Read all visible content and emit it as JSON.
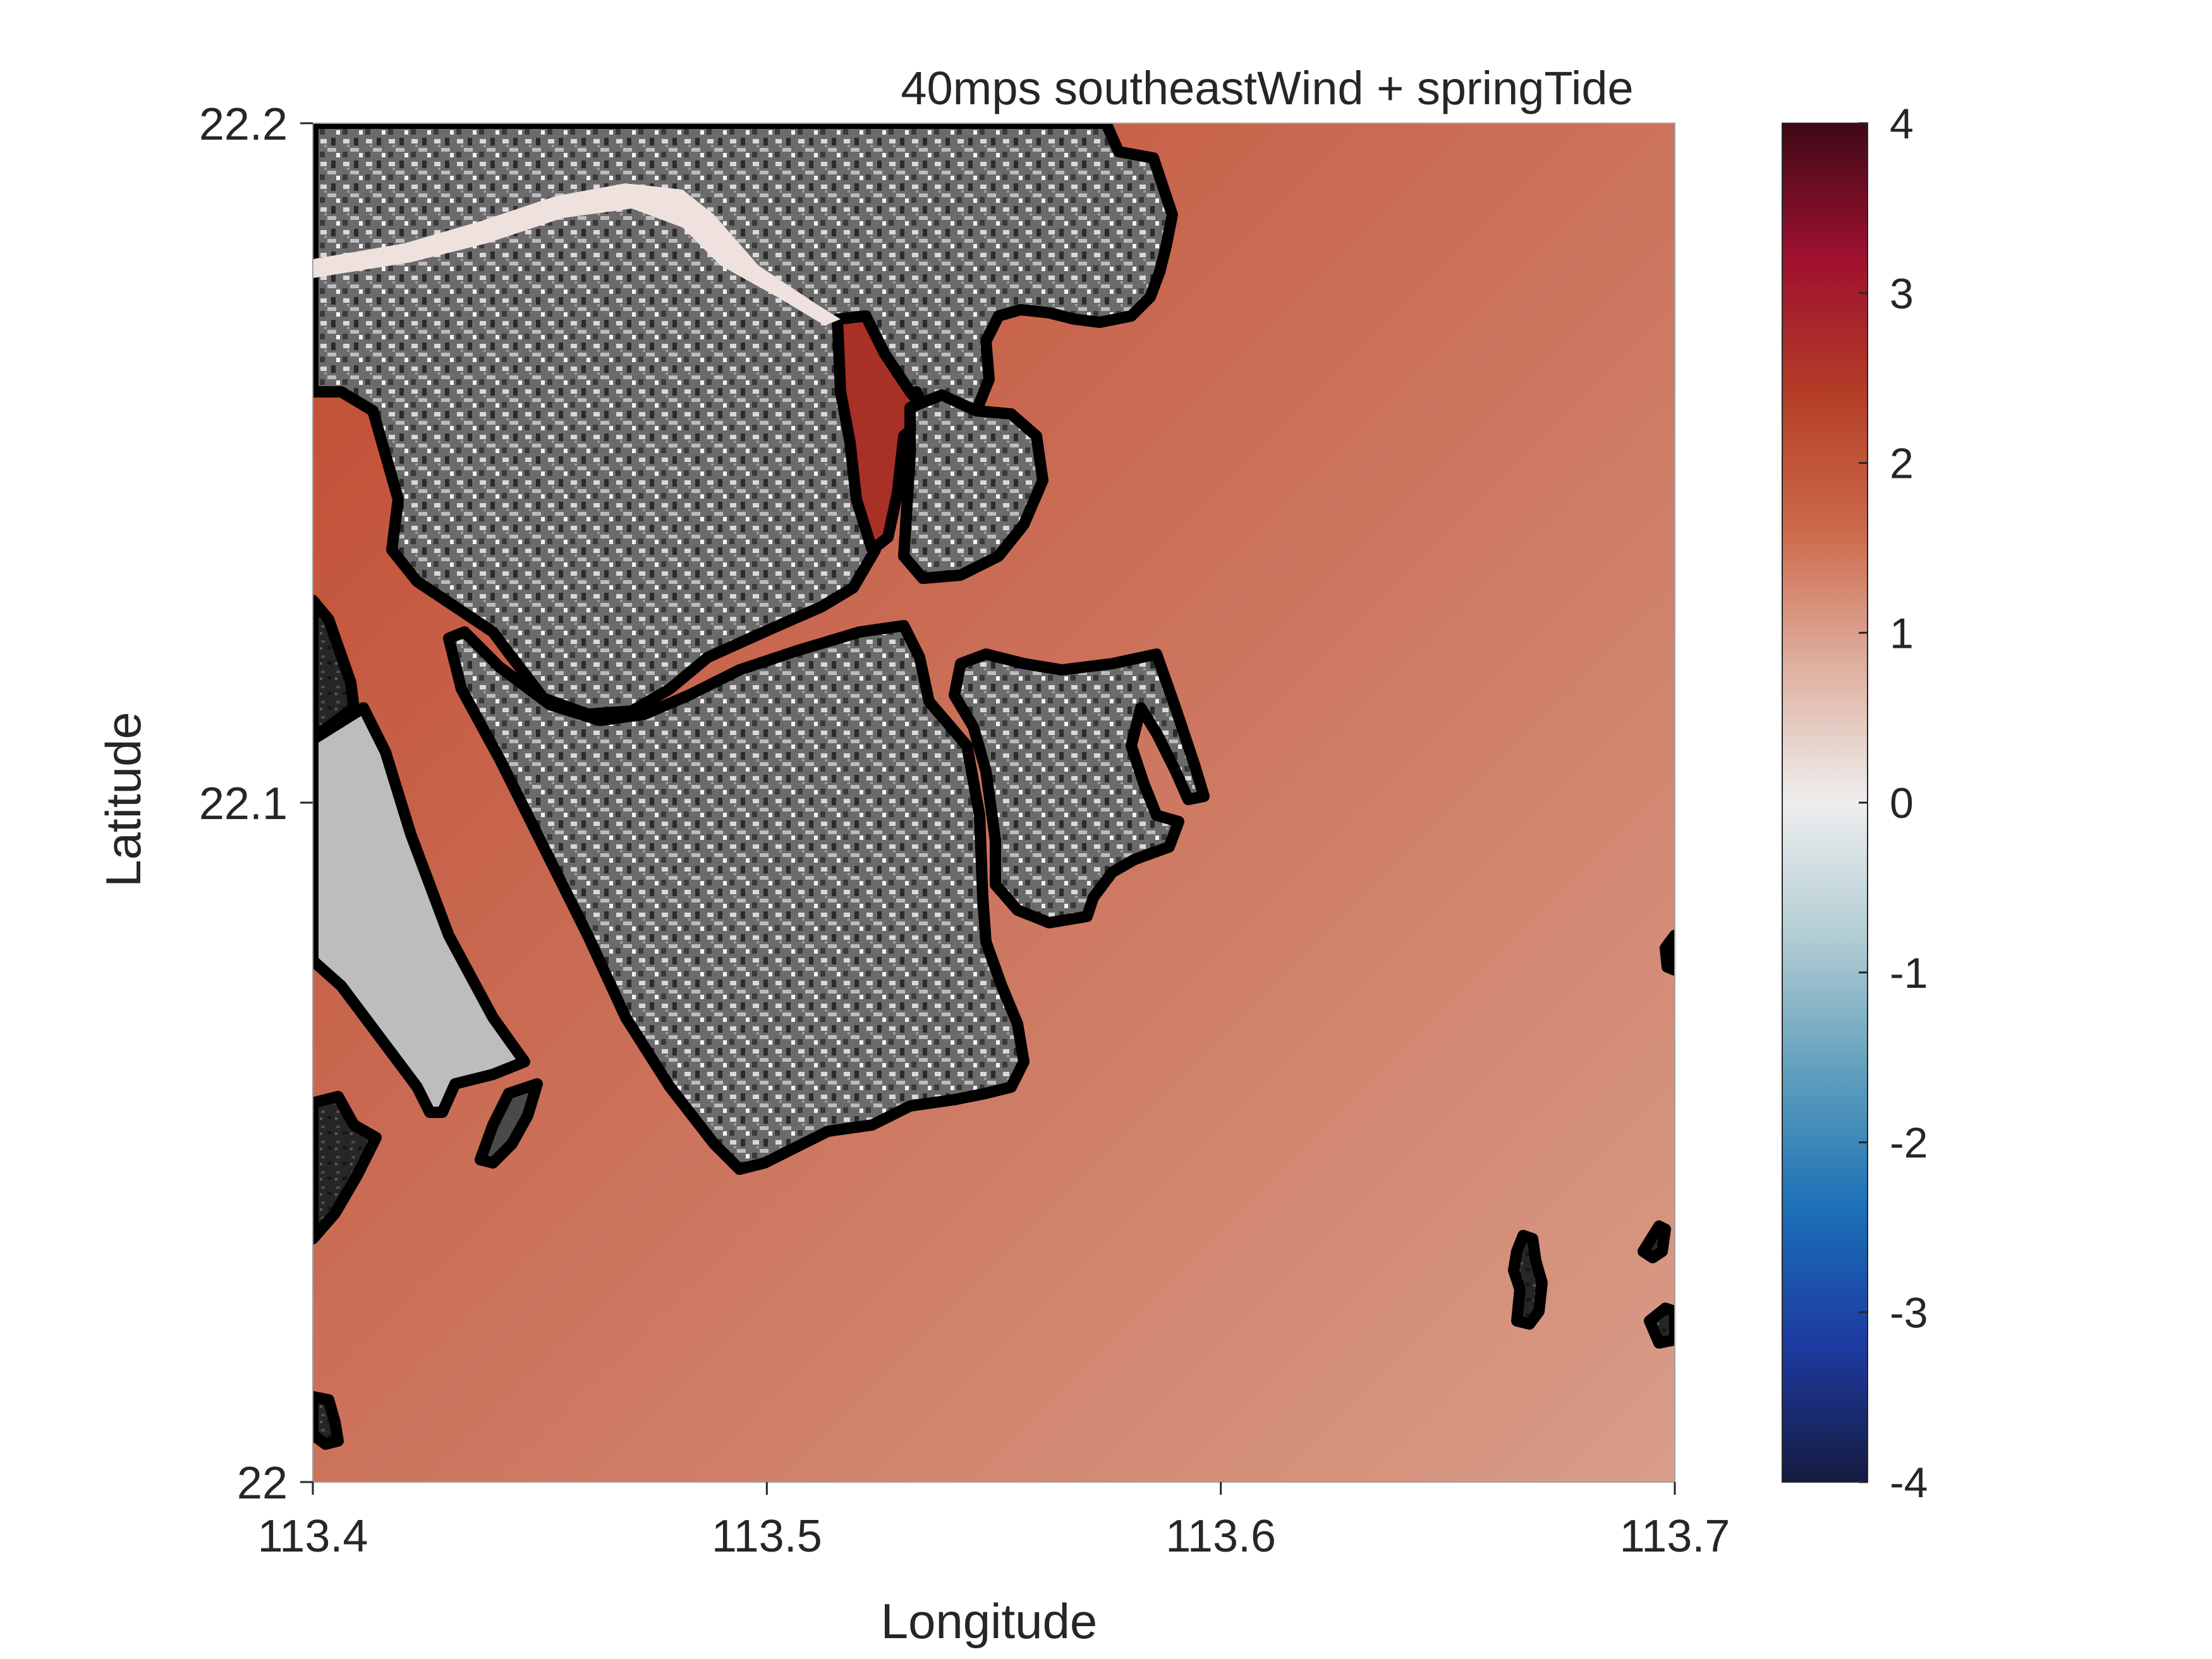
{
  "figure": {
    "title": "40mps southeastWind + springTide",
    "xlabel": "Longitude",
    "ylabel": "Latitude"
  },
  "chart_data": {
    "type": "heatmap",
    "title": "40mps southeastWind + springTide",
    "xlabel": "Longitude",
    "ylabel": "Latitude",
    "xlim": [
      113.4,
      113.7
    ],
    "ylim": [
      22.0,
      22.2
    ],
    "xticks": [
      113.4,
      113.5,
      113.6,
      113.7
    ],
    "xtick_labels": [
      "113.4",
      "113.5",
      "113.6",
      "113.7"
    ],
    "yticks": [
      22.0,
      22.1,
      22.2
    ],
    "ytick_labels": [
      "22",
      "22.1",
      "22.2"
    ],
    "colorbar": {
      "range": [
        -4,
        4
      ],
      "ticks": [
        -4,
        -3,
        -2,
        -1,
        0,
        1,
        2,
        3,
        4
      ],
      "tick_labels": [
        "-4",
        "-3",
        "-2",
        "-1",
        "0",
        "1",
        "2",
        "3",
        "4"
      ],
      "colormap": [
        "#161b3f",
        "#1c3aa1",
        "#1b6fb7",
        "#5e9fbc",
        "#b1ccd3",
        "#eeeeee",
        "#dfb0a0",
        "#cd6a4c",
        "#b43e26",
        "#a01030",
        "#3f0a17"
      ]
    },
    "field_colors": {
      "high": "#c0492f",
      "low": "#d89d88"
    },
    "land_color": "#6b6b6b",
    "coastline_color": "#000000",
    "grid": false
  }
}
